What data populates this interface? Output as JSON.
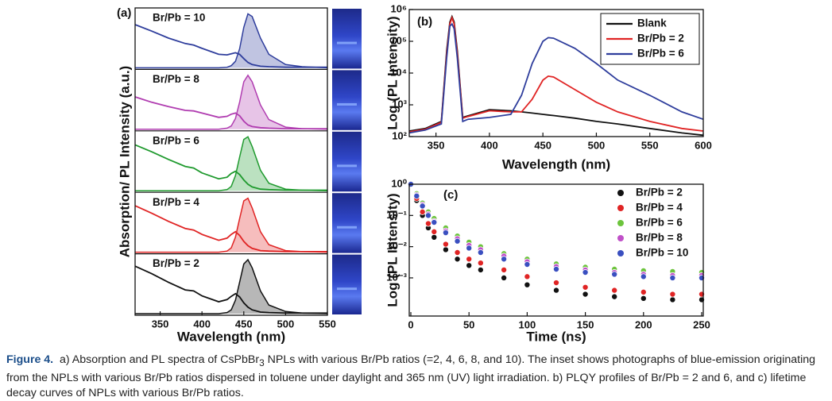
{
  "chart_data": [
    {
      "type": "spectra_stack",
      "panel_label": "(a)",
      "xlabel": "Wavelength (nm)",
      "ylabel": "Absorption/ PL Intensity (a.u.)",
      "xlim": [
        320,
        550
      ],
      "xticks": [
        350,
        400,
        450,
        500,
        550
      ],
      "ylim": [
        0,
        1.05
      ],
      "x": [
        320,
        340,
        360,
        380,
        390,
        400,
        420,
        430,
        435,
        440,
        445,
        450,
        455,
        460,
        470,
        480,
        500,
        520,
        550
      ],
      "series": [
        {
          "name": "Br/Pb = 10",
          "color": "#2e3d9c",
          "absorption": [
            0.8,
            0.68,
            0.55,
            0.45,
            0.42,
            0.36,
            0.25,
            0.24,
            0.26,
            0.28,
            0.25,
            0.17,
            0.1,
            0.06,
            0.03,
            0.02,
            0.01,
            0.01,
            0.01
          ],
          "pl": [
            0,
            0,
            0,
            0,
            0,
            0,
            0,
            0.01,
            0.04,
            0.12,
            0.35,
            0.75,
            1,
            0.95,
            0.55,
            0.25,
            0.06,
            0.02,
            0
          ]
        },
        {
          "name": "Br/Pb = 8",
          "color": "#b03cb0",
          "absorption": [
            0.6,
            0.5,
            0.42,
            0.35,
            0.34,
            0.3,
            0.22,
            0.24,
            0.28,
            0.3,
            0.25,
            0.15,
            0.08,
            0.05,
            0.03,
            0.02,
            0.01,
            0.01,
            0.01
          ],
          "pl": [
            0,
            0,
            0,
            0,
            0,
            0,
            0,
            0.02,
            0.06,
            0.2,
            0.5,
            0.88,
            1,
            0.88,
            0.45,
            0.18,
            0.04,
            0.01,
            0
          ]
        },
        {
          "name": "Br/Pb = 6",
          "color": "#1f9a2e",
          "absorption": [
            0.85,
            0.72,
            0.58,
            0.45,
            0.42,
            0.33,
            0.22,
            0.25,
            0.32,
            0.36,
            0.3,
            0.2,
            0.12,
            0.07,
            0.03,
            0.02,
            0.01,
            0.01,
            0.01
          ],
          "pl": [
            0,
            0,
            0,
            0,
            0,
            0,
            0,
            0.02,
            0.08,
            0.28,
            0.62,
            0.95,
            1,
            0.82,
            0.38,
            0.14,
            0.03,
            0.01,
            0
          ]
        },
        {
          "name": "Br/Pb = 4",
          "color": "#e02424",
          "absorption": [
            0.86,
            0.72,
            0.57,
            0.44,
            0.41,
            0.33,
            0.22,
            0.26,
            0.33,
            0.38,
            0.31,
            0.2,
            0.12,
            0.07,
            0.03,
            0.02,
            0.01,
            0.01,
            0.01
          ],
          "pl": [
            0,
            0,
            0,
            0,
            0,
            0,
            0,
            0.02,
            0.08,
            0.28,
            0.62,
            0.95,
            1,
            0.82,
            0.38,
            0.14,
            0.03,
            0.01,
            0
          ]
        },
        {
          "name": "Br/Pb = 2",
          "color": "#111111",
          "absorption": [
            0.88,
            0.74,
            0.58,
            0.44,
            0.42,
            0.33,
            0.22,
            0.26,
            0.32,
            0.37,
            0.31,
            0.2,
            0.12,
            0.07,
            0.03,
            0.02,
            0.01,
            0.01,
            0.01
          ],
          "pl": [
            0,
            0,
            0,
            0,
            0,
            0,
            0,
            0.02,
            0.07,
            0.25,
            0.58,
            0.92,
            1,
            0.85,
            0.42,
            0.16,
            0.04,
            0.01,
            0
          ]
        }
      ]
    },
    {
      "type": "line",
      "panel_label": "(b)",
      "xlabel": "Wavelength (nm)",
      "ylabel": "Log (PL Intensity)",
      "log_y": true,
      "legend": "upper right",
      "xlim": [
        325,
        600
      ],
      "xticks": [
        350,
        400,
        450,
        500,
        550,
        600
      ],
      "ylim": [
        100,
        1000000
      ],
      "yticks": [
        {
          "value": 100,
          "label": "10²"
        },
        {
          "value": 1000,
          "label": "10³"
        },
        {
          "value": 10000,
          "label": "10⁴"
        },
        {
          "value": 100000,
          "label": "10⁵"
        },
        {
          "value": 1000000,
          "label": "10⁶"
        }
      ],
      "x": [
        325,
        340,
        355,
        360,
        363,
        365,
        367,
        370,
        375,
        380,
        400,
        420,
        430,
        440,
        450,
        455,
        460,
        480,
        500,
        520,
        550,
        580,
        600
      ],
      "series": [
        {
          "name": "Blank",
          "color": "#111111",
          "values": [
            150,
            180,
            300,
            50000,
            400000,
            600000,
            400000,
            50000,
            400,
            450,
            700,
            650,
            600,
            550,
            500,
            480,
            460,
            380,
            300,
            250,
            180,
            130,
            110
          ]
        },
        {
          "name": "Br/Pb = 2",
          "color": "#e02424",
          "values": [
            140,
            170,
            280,
            40000,
            350000,
            550000,
            350000,
            40000,
            380,
            430,
            650,
            600,
            600,
            1500,
            6000,
            8000,
            7500,
            3000,
            1200,
            600,
            300,
            180,
            150
          ]
        },
        {
          "name": "Br/Pb = 6",
          "color": "#2e3d9c",
          "values": [
            130,
            160,
            250,
            30000,
            300000,
            350000,
            250000,
            30000,
            300,
            350,
            400,
            500,
            2000,
            20000,
            100000,
            130000,
            125000,
            60000,
            20000,
            6000,
            2000,
            600,
            350
          ]
        }
      ]
    },
    {
      "type": "scatter",
      "panel_label": "(c)",
      "xlabel": "Time (ns)",
      "ylabel": "Log (PL Intensity)",
      "log_y": true,
      "legend": "upper right",
      "xlim": [
        0,
        250
      ],
      "xticks": [
        0,
        50,
        100,
        150,
        200,
        250
      ],
      "ylim": [
        6e-05,
        1
      ],
      "yticks": [
        {
          "value": 0.001,
          "label": "10⁻³"
        },
        {
          "value": 0.01,
          "label": "10⁻²"
        },
        {
          "value": 0.1,
          "label": "10⁻¹"
        },
        {
          "value": 1,
          "label": "10⁰"
        }
      ],
      "x": [
        0,
        5,
        10,
        15,
        20,
        30,
        40,
        50,
        60,
        80,
        100,
        125,
        150,
        175,
        200,
        225,
        250
      ],
      "series": [
        {
          "name": "Br/Pb = 2",
          "color": "#111111",
          "values": [
            1,
            0.3,
            0.1,
            0.04,
            0.02,
            0.008,
            0.004,
            0.0025,
            0.0018,
            0.001,
            0.0006,
            0.0004,
            0.0003,
            0.00025,
            0.00022,
            0.0002,
            0.0002
          ]
        },
        {
          "name": "Br/Pb = 4",
          "color": "#e02424",
          "values": [
            1,
            0.35,
            0.13,
            0.055,
            0.03,
            0.012,
            0.0065,
            0.004,
            0.003,
            0.0018,
            0.0011,
            0.0007,
            0.0005,
            0.0004,
            0.00035,
            0.0003,
            0.0003
          ]
        },
        {
          "name": "Br/Pb = 6",
          "color": "#6cc43c",
          "values": [
            1,
            0.5,
            0.25,
            0.13,
            0.08,
            0.04,
            0.022,
            0.014,
            0.01,
            0.006,
            0.004,
            0.0028,
            0.0022,
            0.0019,
            0.0017,
            0.0016,
            0.0015
          ]
        },
        {
          "name": "Br/Pb = 8",
          "color": "#c050c8",
          "values": [
            1,
            0.45,
            0.22,
            0.11,
            0.065,
            0.032,
            0.018,
            0.011,
            0.008,
            0.005,
            0.0033,
            0.0023,
            0.0018,
            0.0015,
            0.0013,
            0.0012,
            0.0012
          ]
        },
        {
          "name": "Br/Pb = 10",
          "color": "#3a4fc0",
          "values": [
            1,
            0.42,
            0.2,
            0.1,
            0.06,
            0.028,
            0.015,
            0.009,
            0.0065,
            0.004,
            0.0027,
            0.0019,
            0.0015,
            0.0013,
            0.0011,
            0.001,
            0.001
          ]
        }
      ]
    }
  ],
  "caption": {
    "label": "Figure 4.",
    "parts": [
      "a) Absorption and PL spectra of CsPbBr",
      "3",
      " NPLs with various Br/Pb ratios (=2, 4, 6, 8, and 10). The inset shows photographs of blue-emission originating from the NPLs with various Br/Pb ratios dispersed in toluene under daylight and 365 nm (UV) light irradiation. b) PLQY profiles of Br/Pb = 2 and 6, and c) lifetime decay curves of NPLs with various Br/Pb ratios."
    ]
  }
}
